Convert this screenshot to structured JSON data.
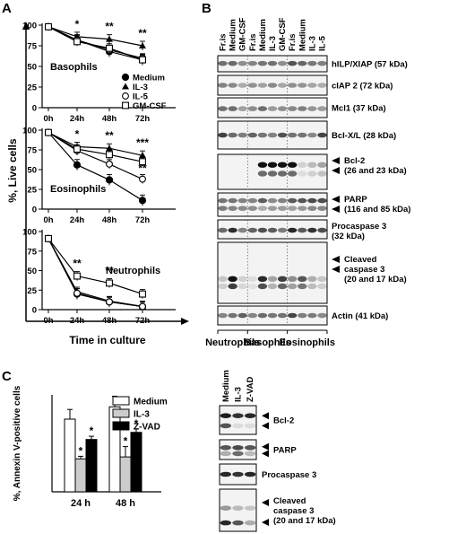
{
  "panel_letters": {
    "a": "A",
    "b": "B",
    "c": "C"
  },
  "panel_a": {
    "y_axis_label": "%, Live cells",
    "x_axis_label": "Time in culture",
    "legend": [
      "Medium",
      "IL-3",
      "IL-5",
      "GM-CSF"
    ],
    "chart_data": [
      {
        "type": "line",
        "title": "Basophils",
        "x": [
          "0h",
          "24h",
          "48h",
          "72h"
        ],
        "ylim": [
          0,
          100
        ],
        "yticks": [
          "0",
          "25",
          "50",
          "75",
          "100"
        ],
        "series": [
          {
            "name": "Medium",
            "values": [
              98,
              82,
              68,
              58
            ]
          },
          {
            "name": "IL-3",
            "values": [
              98,
              86,
              83,
              75
            ]
          },
          {
            "name": "IL-5",
            "values": [
              98,
              82,
              70,
              60
            ]
          },
          {
            "name": "GM-CSF",
            "values": [
              98,
              80,
              72,
              58
            ]
          }
        ],
        "significance": [
          {
            "x": "24h",
            "label": "*"
          },
          {
            "x": "48h",
            "label": "**"
          },
          {
            "x": "72h",
            "label": "**"
          }
        ]
      },
      {
        "type": "line",
        "title": "Eosinophils",
        "x": [
          "0h",
          "24h",
          "48h",
          "72h"
        ],
        "ylim": [
          0,
          100
        ],
        "yticks": [
          "0",
          "25",
          "50",
          "75",
          "100"
        ],
        "series": [
          {
            "name": "Medium",
            "values": [
              97,
              56,
              37,
              11
            ]
          },
          {
            "name": "IL-3",
            "values": [
              97,
              79,
              77,
              68
            ]
          },
          {
            "name": "IL-5",
            "values": [
              97,
              74,
              57,
              38
            ]
          },
          {
            "name": "GM-CSF",
            "values": [
              97,
              76,
              69,
              60
            ]
          }
        ],
        "significance": [
          {
            "x": "24h",
            "label": "*"
          },
          {
            "x": "48h",
            "label": "**"
          },
          {
            "x": "72h",
            "label": "***"
          },
          {
            "x": "72h",
            "label": "**"
          }
        ]
      },
      {
        "type": "line",
        "title": "Neutrophils",
        "x": [
          "0h",
          "24h",
          "48h",
          "72h"
        ],
        "ylim": [
          0,
          100
        ],
        "yticks": [
          "0",
          "25",
          "50",
          "75",
          "100"
        ],
        "series": [
          {
            "name": "Medium",
            "values": [
              91,
              20,
              10,
              4
            ]
          },
          {
            "name": "IL-3",
            "values": [
              91,
              23,
              11,
              4
            ]
          },
          {
            "name": "IL-5",
            "values": [
              91,
              21,
              10,
              4
            ]
          },
          {
            "name": "GM-CSF",
            "values": [
              91,
              43,
              34,
              20
            ]
          }
        ],
        "significance": [
          {
            "x": "24h",
            "label": "**"
          },
          {
            "x": "48h",
            "label": "**"
          }
        ]
      }
    ]
  },
  "panel_b": {
    "lanes": [
      "Fr.is",
      "Medium",
      "GM-CSF",
      "Fr.is",
      "Medium",
      "IL-3",
      "GM-CSF",
      "Fr.is",
      "Medium",
      "IL-3",
      "IL-5"
    ],
    "blots": [
      {
        "label": "hILP/XIAP (57 kDa)"
      },
      {
        "label": "cIAP 2 (72 kDa)"
      },
      {
        "label": "Mcl1 (37 kDa)"
      },
      {
        "label": "Bcl-X/L (28 kDa)"
      },
      {
        "label": "Bcl-2",
        "label2": "(26 and 23 kDa)"
      },
      {
        "label": "PARP",
        "label2": "(116 and 85 kDa)"
      },
      {
        "label": "Procaspase 3",
        "label2": "(32 kDa)"
      },
      {
        "label": "Cleaved",
        "label2": "caspase 3",
        "label3": "(20 and 17 kDa)"
      },
      {
        "label": "Actin  (41 kDa)"
      }
    ],
    "groups": [
      "Neutrophils",
      "Basophils",
      "Eosinophils"
    ]
  },
  "panel_c": {
    "chart_data": {
      "type": "bar",
      "categories": [
        "24 h",
        "48 h"
      ],
      "ylabel": "%, Annexin V-positive cells",
      "series": [
        {
          "name": "Medium",
          "values": [
            22.5,
            26.3
          ],
          "errors": [
            3.0,
            3.3
          ]
        },
        {
          "name": "IL-3",
          "values": [
            10.2,
            10.8
          ],
          "errors": [
            0.8,
            3.2
          ]
        },
        {
          "name": "Z-VAD",
          "values": [
            16.2,
            18.4
          ],
          "errors": [
            1.0,
            1.1
          ]
        }
      ],
      "significance": [
        "",
        "*",
        "*",
        "",
        "*",
        "*"
      ],
      "colors": [
        "#ffffff",
        "#cccccc",
        "#000000"
      ]
    },
    "lanes": [
      "Medium",
      "IL-3",
      "Z-VAD"
    ],
    "blots": [
      {
        "label": "Bcl-2"
      },
      {
        "label": "PARP"
      },
      {
        "label": "Procaspase 3"
      },
      {
        "label": "Cleaved",
        "label2": "caspase 3",
        "label3": "(20 and 17 kDa)"
      }
    ]
  }
}
